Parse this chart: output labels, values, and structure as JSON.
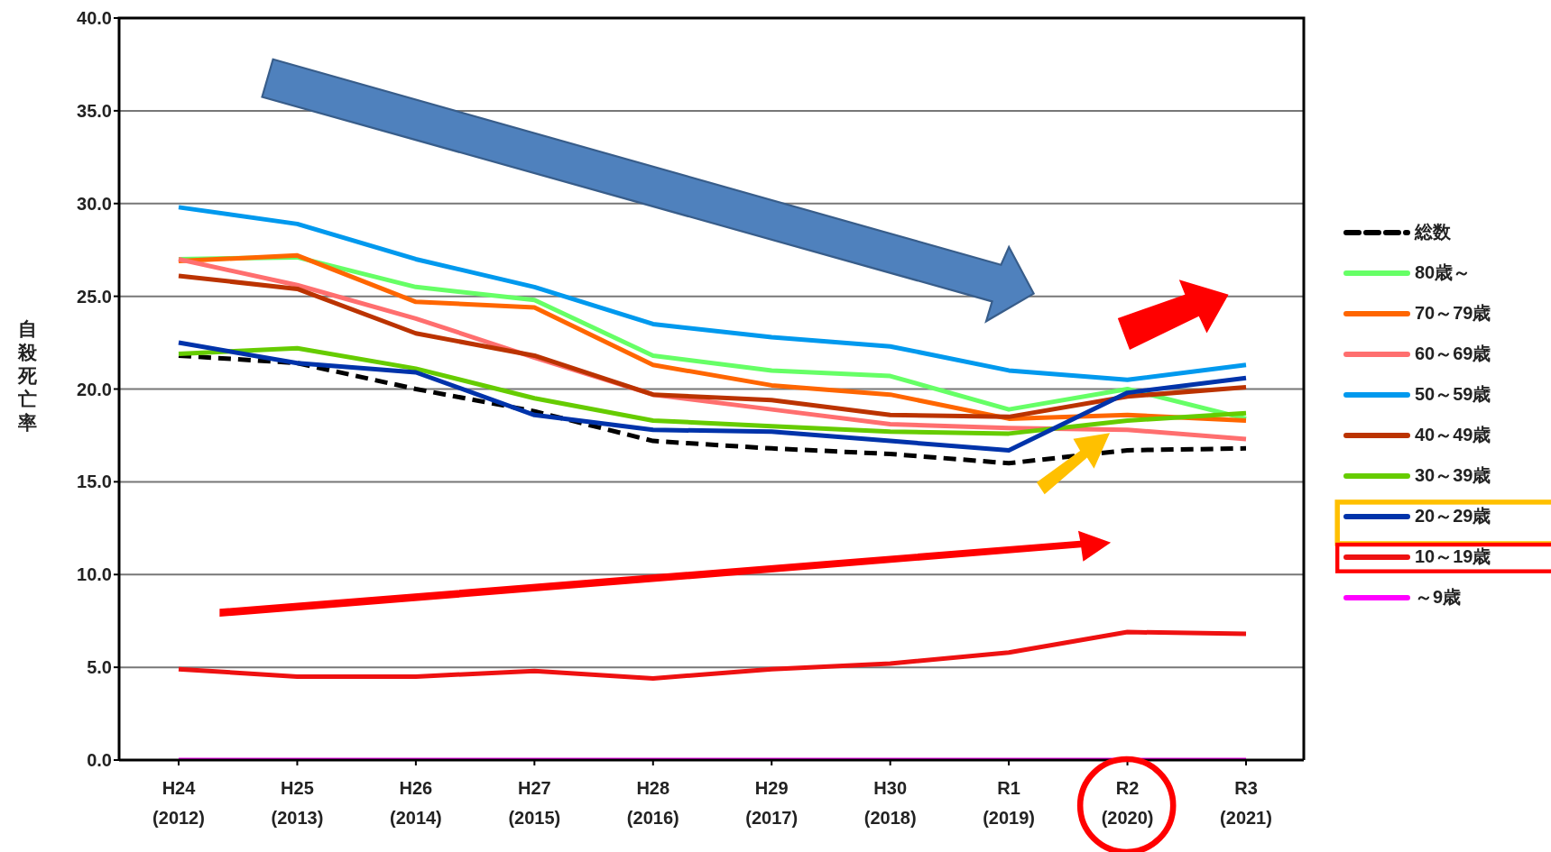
{
  "chart_data": {
    "type": "line",
    "ylabel": "自殺死亡率",
    "categories": [
      "H24 (2012)",
      "H25 (2013)",
      "H26 (2014)",
      "H27 (2015)",
      "H28 (2016)",
      "H29 (2017)",
      "H30 (2018)",
      "R1 (2019)",
      "R2 (2020)",
      "R3 (2021)"
    ],
    "series": [
      {
        "name": "総数",
        "color": "#000000",
        "line_style": "dashed",
        "values": [
          21.8,
          21.4,
          20.0,
          18.8,
          17.2,
          16.8,
          16.5,
          16.0,
          16.7,
          16.8
        ]
      },
      {
        "name": "80歳～",
        "color": "#66ff66",
        "values": [
          27.0,
          27.1,
          25.5,
          24.8,
          21.8,
          21.0,
          20.7,
          18.9,
          20.0,
          18.4
        ]
      },
      {
        "name": "70～79歳",
        "color": "#ff6600",
        "values": [
          26.9,
          27.2,
          24.7,
          24.4,
          21.3,
          20.2,
          19.7,
          18.4,
          18.6,
          18.3
        ]
      },
      {
        "name": "60～69歳",
        "color": "#ff6f6f",
        "values": [
          27.0,
          25.6,
          23.8,
          21.7,
          19.7,
          18.9,
          18.1,
          17.9,
          17.8,
          17.3
        ]
      },
      {
        "name": "50～59歳",
        "color": "#0099ee",
        "values": [
          29.8,
          28.9,
          27.0,
          25.5,
          23.5,
          22.8,
          22.3,
          21.0,
          20.5,
          21.3
        ]
      },
      {
        "name": "40～49歳",
        "color": "#bb3300",
        "values": [
          26.1,
          25.4,
          23.0,
          21.8,
          19.7,
          19.4,
          18.6,
          18.5,
          19.6,
          20.1
        ]
      },
      {
        "name": "30～39歳",
        "color": "#66cc00",
        "values": [
          21.9,
          22.2,
          21.1,
          19.5,
          18.3,
          18.0,
          17.7,
          17.6,
          18.3,
          18.7
        ]
      },
      {
        "name": "20～29歳",
        "color": "#0033aa",
        "values": [
          22.5,
          21.4,
          20.9,
          18.6,
          17.8,
          17.7,
          17.2,
          16.7,
          19.8,
          20.6
        ]
      },
      {
        "name": "10～19歳",
        "color": "#ee1111",
        "values": [
          4.9,
          4.5,
          4.5,
          4.8,
          4.4,
          4.9,
          5.2,
          5.8,
          6.9,
          6.8
        ]
      },
      {
        "name": "～9歳",
        "color": "#ff00ff",
        "values": [
          0,
          0,
          0,
          0,
          0,
          0,
          0,
          0,
          0,
          0
        ]
      }
    ],
    "ylim": [
      0,
      40
    ],
    "yticks": [
      {
        "value": 0,
        "label": "0.0"
      },
      {
        "value": 5,
        "label": "5.0"
      },
      {
        "value": 10,
        "label": "10.0"
      },
      {
        "value": 15,
        "label": "15.0"
      },
      {
        "value": 20,
        "label": "20.0"
      },
      {
        "value": 25,
        "label": "25.0"
      },
      {
        "value": 30,
        "label": "30.0"
      },
      {
        "value": 35,
        "label": "35.0"
      },
      {
        "value": 40,
        "label": "40.0"
      }
    ],
    "grid": "y",
    "legend": "right",
    "marker": "none"
  }
}
